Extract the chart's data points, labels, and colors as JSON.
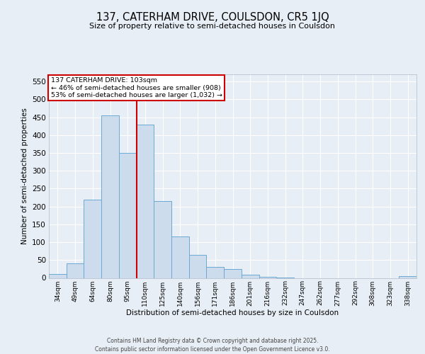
{
  "title": "137, CATERHAM DRIVE, COULSDON, CR5 1JQ",
  "subtitle": "Size of property relative to semi-detached houses in Coulsdon",
  "xlabel": "Distribution of semi-detached houses by size in Coulsdon",
  "ylabel": "Number of semi-detached properties",
  "categories": [
    "34sqm",
    "49sqm",
    "64sqm",
    "80sqm",
    "95sqm",
    "110sqm",
    "125sqm",
    "140sqm",
    "156sqm",
    "171sqm",
    "186sqm",
    "201sqm",
    "216sqm",
    "232sqm",
    "247sqm",
    "262sqm",
    "277sqm",
    "292sqm",
    "308sqm",
    "323sqm",
    "338sqm"
  ],
  "values": [
    10,
    40,
    220,
    455,
    350,
    430,
    215,
    115,
    65,
    30,
    25,
    8,
    3,
    1,
    0,
    0,
    0,
    0,
    0,
    0,
    5
  ],
  "bar_color": "#cddcec",
  "bar_edgecolor": "#6aaad4",
  "vline_x_index": 4.5,
  "vline_color": "#cc0000",
  "ylim": [
    0,
    570
  ],
  "yticks": [
    0,
    50,
    100,
    150,
    200,
    250,
    300,
    350,
    400,
    450,
    500,
    550
  ],
  "annotation_title": "137 CATERHAM DRIVE: 103sqm",
  "annotation_line1": "← 46% of semi-detached houses are smaller (908)",
  "annotation_line2": "53% of semi-detached houses are larger (1,032) →",
  "annotation_box_color": "#cc0000",
  "footnote1": "Contains HM Land Registry data © Crown copyright and database right 2025.",
  "footnote2": "Contains public sector information licensed under the Open Government Licence v3.0.",
  "background_color": "#e8eef5",
  "grid_color": "#ffffff",
  "spine_color": "#b0b8c8"
}
